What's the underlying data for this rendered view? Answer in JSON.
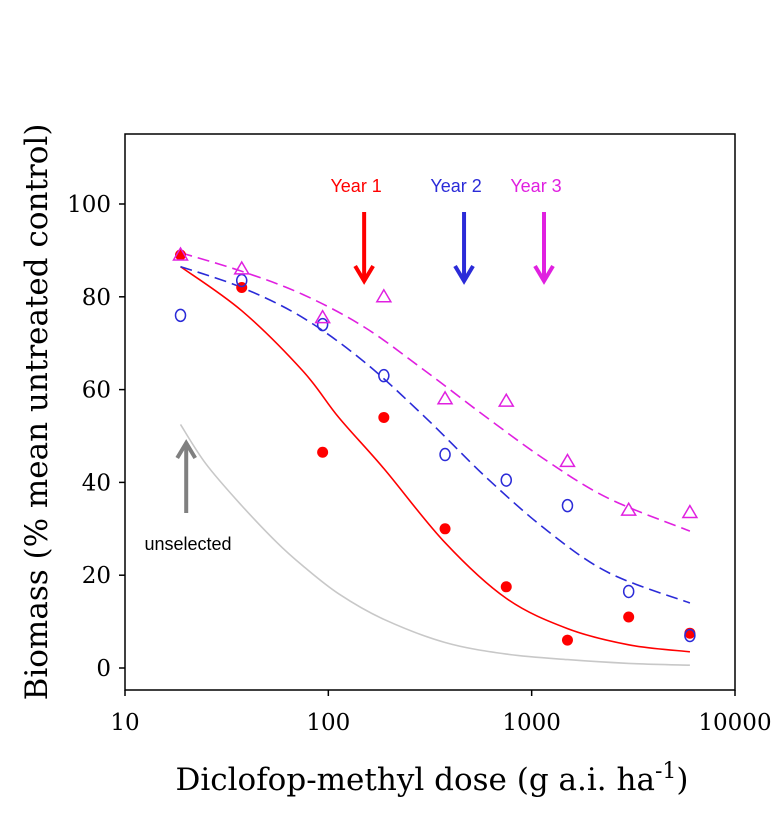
{
  "chart_data": {
    "type": "scatter",
    "title": "",
    "xlabel": "Diclofop-methyl dose (g a.i. ha",
    "xlabel_sup": "-1",
    "xlabel_close": ")",
    "ylabel": "Biomass (% mean untreated control)",
    "xscale": "log",
    "xlim": [
      10,
      10000
    ],
    "ylim": [
      -5,
      115
    ],
    "x_ticks": [
      10,
      100,
      1000,
      10000
    ],
    "x_tick_labels": [
      "10",
      "100",
      "1000",
      "10000"
    ],
    "y_ticks": [
      0,
      20,
      40,
      60,
      80,
      100
    ],
    "y_tick_labels": [
      "0",
      "20",
      "40",
      "60",
      "80",
      "100"
    ],
    "grid": false,
    "series": [
      {
        "name": "Year 1",
        "color": "#ff0000",
        "marker": "filled-circle",
        "line_style": "solid",
        "points": [
          [
            18.75,
            89
          ],
          [
            37.5,
            82
          ],
          [
            93.75,
            46.5
          ],
          [
            187.5,
            54
          ],
          [
            375,
            30
          ],
          [
            750,
            17.5
          ],
          [
            1500,
            6
          ],
          [
            3000,
            11
          ],
          [
            6000,
            7.5
          ]
        ],
        "fit": [
          [
            18.75,
            86.5
          ],
          [
            37.5,
            77
          ],
          [
            75,
            64
          ],
          [
            112.5,
            54
          ],
          [
            187.5,
            43
          ],
          [
            375,
            27
          ],
          [
            750,
            15
          ],
          [
            1500,
            8.5
          ],
          [
            3000,
            5
          ],
          [
            6000,
            3.5
          ]
        ]
      },
      {
        "name": "Year 2",
        "color": "#2b2bd8",
        "marker": "open-circle",
        "line_style": "dashed",
        "points": [
          [
            18.75,
            76
          ],
          [
            37.5,
            83.5
          ],
          [
            93.75,
            74
          ],
          [
            187.5,
            63
          ],
          [
            375,
            46
          ],
          [
            750,
            40.5
          ],
          [
            1500,
            35
          ],
          [
            3000,
            16.5
          ],
          [
            6000,
            7
          ]
        ],
        "fit": [
          [
            18.75,
            86.5
          ],
          [
            37.5,
            82
          ],
          [
            75,
            75.5
          ],
          [
            150,
            66
          ],
          [
            300,
            54
          ],
          [
            600,
            41
          ],
          [
            1200,
            29.5
          ],
          [
            2400,
            20.5
          ],
          [
            6000,
            14
          ]
        ]
      },
      {
        "name": "Year 3",
        "color": "#e020e0",
        "marker": "open-triangle",
        "line_style": "dashed",
        "points": [
          [
            18.75,
            89
          ],
          [
            37.5,
            86
          ],
          [
            93.75,
            75.5
          ],
          [
            187.5,
            80
          ],
          [
            375,
            58
          ],
          [
            750,
            57.5
          ],
          [
            1500,
            44.5
          ],
          [
            3000,
            34
          ],
          [
            6000,
            33.5
          ]
        ],
        "fit": [
          [
            18.75,
            89.5
          ],
          [
            37.5,
            85.5
          ],
          [
            75,
            80.5
          ],
          [
            150,
            73.5
          ],
          [
            300,
            64
          ],
          [
            600,
            54
          ],
          [
            1200,
            44.5
          ],
          [
            2400,
            36.5
          ],
          [
            6000,
            29.5
          ]
        ]
      },
      {
        "name": "unselected",
        "color": "#c8c8c8",
        "marker": "none",
        "line_style": "solid",
        "points": [],
        "fit": [
          [
            18.75,
            52.5
          ],
          [
            25,
            44
          ],
          [
            37.5,
            35
          ],
          [
            56,
            27
          ],
          [
            75,
            22
          ],
          [
            112.5,
            16
          ],
          [
            187.5,
            10.5
          ],
          [
            375,
            5.5
          ],
          [
            750,
            3
          ],
          [
            1500,
            1.8
          ],
          [
            3000,
            1
          ],
          [
            6000,
            0.6
          ]
        ]
      }
    ],
    "annotations": [
      {
        "text": "Year 1",
        "color": "#ff0000",
        "arrow": "down",
        "x": 150
      },
      {
        "text": "Year 2",
        "color": "#2b2bd8",
        "arrow": "down",
        "x": 465
      },
      {
        "text": "Year 3",
        "color": "#e020e0",
        "arrow": "down",
        "x": 1150
      },
      {
        "text": "unselected",
        "color": "#000000",
        "arrow_color": "#808080",
        "arrow": "up",
        "x": 20
      }
    ]
  }
}
